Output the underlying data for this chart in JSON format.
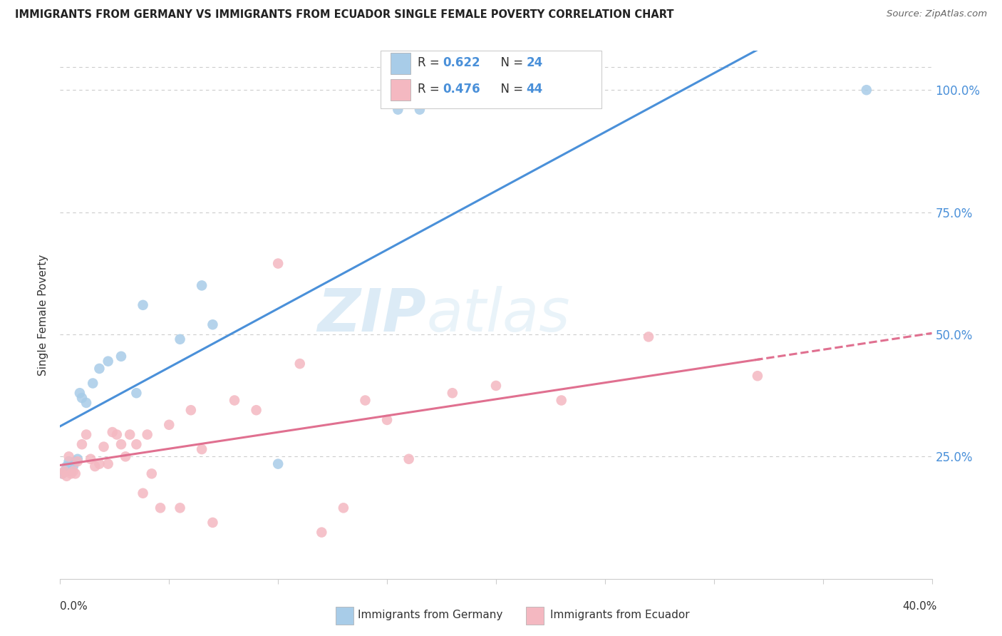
{
  "title": "IMMIGRANTS FROM GERMANY VS IMMIGRANTS FROM ECUADOR SINGLE FEMALE POVERTY CORRELATION CHART",
  "source": "Source: ZipAtlas.com",
  "ylabel": "Single Female Poverty",
  "xlim": [
    0.0,
    0.4
  ],
  "ylim": [
    0.0,
    1.08
  ],
  "yticks": [
    0.25,
    0.5,
    0.75,
    1.0
  ],
  "ytick_labels": [
    "25.0%",
    "50.0%",
    "75.0%",
    "100.0%"
  ],
  "germany_color": "#a8cce8",
  "germany_color_line": "#4a90d9",
  "ecuador_color": "#f4b8c1",
  "ecuador_color_line": "#e07090",
  "legend_r_germany": "0.622",
  "legend_n_germany": "24",
  "legend_r_ecuador": "0.476",
  "legend_n_ecuador": "44",
  "watermark_zip": "ZIP",
  "watermark_atlas": "atlas",
  "background_color": "#ffffff",
  "grid_color": "#cccccc",
  "germany_x": [
    0.001,
    0.002,
    0.003,
    0.004,
    0.005,
    0.006,
    0.007,
    0.008,
    0.009,
    0.01,
    0.012,
    0.015,
    0.018,
    0.022,
    0.028,
    0.035,
    0.038,
    0.055,
    0.065,
    0.07,
    0.1,
    0.155,
    0.165,
    0.37
  ],
  "germany_y": [
    0.215,
    0.22,
    0.23,
    0.24,
    0.22,
    0.23,
    0.24,
    0.245,
    0.38,
    0.37,
    0.36,
    0.4,
    0.43,
    0.445,
    0.455,
    0.38,
    0.56,
    0.49,
    0.6,
    0.52,
    0.235,
    0.96,
    0.96,
    1.0
  ],
  "ecuador_x": [
    0.001,
    0.002,
    0.003,
    0.004,
    0.005,
    0.006,
    0.007,
    0.008,
    0.01,
    0.012,
    0.014,
    0.016,
    0.018,
    0.02,
    0.022,
    0.024,
    0.026,
    0.028,
    0.03,
    0.032,
    0.035,
    0.038,
    0.04,
    0.042,
    0.046,
    0.05,
    0.055,
    0.06,
    0.065,
    0.07,
    0.08,
    0.09,
    0.1,
    0.11,
    0.12,
    0.13,
    0.14,
    0.15,
    0.16,
    0.18,
    0.2,
    0.23,
    0.27,
    0.32
  ],
  "ecuador_y": [
    0.215,
    0.22,
    0.21,
    0.25,
    0.215,
    0.22,
    0.215,
    0.24,
    0.275,
    0.295,
    0.245,
    0.23,
    0.235,
    0.27,
    0.235,
    0.3,
    0.295,
    0.275,
    0.25,
    0.295,
    0.275,
    0.175,
    0.295,
    0.215,
    0.145,
    0.315,
    0.145,
    0.345,
    0.265,
    0.115,
    0.365,
    0.345,
    0.645,
    0.44,
    0.095,
    0.145,
    0.365,
    0.325,
    0.245,
    0.38,
    0.395,
    0.365,
    0.495,
    0.415
  ]
}
